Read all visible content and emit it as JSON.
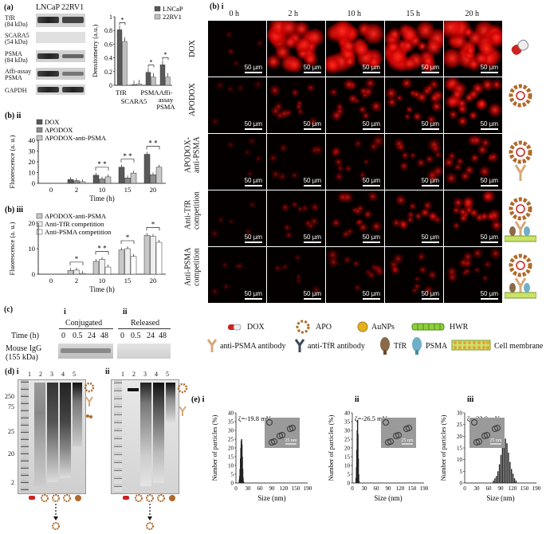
{
  "panel_a": {
    "label": "(a)",
    "cell_lines": [
      "LNCaP",
      "22RV1"
    ],
    "blots": [
      {
        "name": "TfR",
        "size": "(84 kDa)"
      },
      {
        "name": "SCARA5",
        "size": "(54 kDa)"
      },
      {
        "name": "PSMA",
        "size": "(84 kDa)"
      },
      {
        "name": "Affi-assay",
        "size": "PSMA"
      },
      {
        "name": "GAPDH",
        "size": ""
      }
    ],
    "chart_data": {
      "type": "bar",
      "ylabel": "Densitometry (a.u.)",
      "ylim": [
        0,
        1.0
      ],
      "yticks": [
        "0",
        "0.2",
        "0.4",
        "0.6",
        "0.8",
        "1"
      ],
      "categories": [
        "TfR",
        "SCARA5",
        "PSMA",
        "Affi-assay PSMA"
      ],
      "series": [
        {
          "name": "LNCaP",
          "color": "#595959",
          "values": [
            0.81,
            0.01,
            0.19,
            0.3
          ]
        },
        {
          "name": "22RV1",
          "color": "#bfbfbf",
          "values": [
            0.64,
            0.02,
            0.12,
            0.12
          ]
        }
      ],
      "significance": [
        "*",
        "",
        "*",
        "*"
      ]
    }
  },
  "panel_bii": {
    "label": "(b) ii",
    "chart_data": {
      "type": "bar",
      "ylabel": "Fluorescence (a. u.)",
      "xlabel": "Time (h)",
      "ylim": [
        0,
        40
      ],
      "yticks": [
        "0",
        "10",
        "20",
        "30",
        "40"
      ],
      "categories": [
        "0",
        "2",
        "10",
        "15",
        "20"
      ],
      "series": [
        {
          "name": "DOX",
          "color": "#595959",
          "values": [
            0,
            3.5,
            7.5,
            15,
            27
          ]
        },
        {
          "name": "APODOX",
          "color": "#8c8c8c",
          "values": [
            0,
            2.5,
            4,
            5,
            8
          ]
        },
        {
          "name": "APODOX-anti-PSMA",
          "color": "#c8c8c8",
          "values": [
            0,
            1.5,
            6,
            9.5,
            15
          ]
        }
      ],
      "significance": [
        "",
        "",
        "* *",
        "* *",
        "* *"
      ]
    }
  },
  "panel_biii": {
    "label": "(b) iii",
    "chart_data": {
      "type": "bar",
      "ylabel": "Fluorescence (a. u.)",
      "xlabel": "Time (h)",
      "ylim": [
        0,
        20
      ],
      "yticks": [
        "0",
        "10",
        "20"
      ],
      "categories": [
        "0",
        "2",
        "10",
        "15",
        "20"
      ],
      "series": [
        {
          "name": "APODOX-anti-PSMA",
          "color": "#c8c8c8",
          "values": [
            0,
            1.5,
            5,
            9.5,
            15.2
          ]
        },
        {
          "name": "Anti-TfR competition",
          "color": "#eeeeee",
          "values": [
            0,
            1.6,
            5.8,
            10.0,
            14.8
          ]
        },
        {
          "name": "Anti-PSMA competition",
          "color": "#ffffff",
          "values": [
            0,
            0.3,
            2.8,
            7.0,
            12.5
          ]
        }
      ],
      "significance": [
        "",
        "*",
        "* *",
        "*",
        "*"
      ]
    }
  },
  "panel_bi": {
    "label": "(b) i",
    "times": [
      "0 h",
      "2 h",
      "10 h",
      "15 h",
      "20 h"
    ],
    "rows": [
      "DOX",
      "APODOX",
      "APODOX-\nanti-PSMA",
      "Anti-TfR\ncompetition",
      "Anti-PSMA\ncompetition"
    ],
    "scale": "50 µm",
    "intensity": [
      [
        0.05,
        0.8,
        0.95,
        0.95,
        0.95
      ],
      [
        0.05,
        0.35,
        0.5,
        0.6,
        0.7
      ],
      [
        0.05,
        0.15,
        0.3,
        0.4,
        0.5
      ],
      [
        0.05,
        0.25,
        0.45,
        0.45,
        0.6
      ],
      [
        0.05,
        0.1,
        0.25,
        0.3,
        0.35
      ]
    ]
  },
  "panel_c": {
    "label": "(c)",
    "sub_i": "i",
    "sub_ii": "ii",
    "group_i": "Conjugated",
    "group_ii": "Released",
    "time_label": "Time (h)",
    "times": [
      "0",
      "0.5",
      "24",
      "48"
    ],
    "row_label": "Mouse IgG",
    "row_size": "(155 kDa)"
  },
  "legend": {
    "items": [
      "DOX",
      "APO",
      "AuNPs",
      "HWR",
      "anti-PSMA antibody",
      "anti-TfR antibody",
      "TfR",
      "PSMA",
      "Cell membrane"
    ]
  },
  "panel_d": {
    "label": "(d) i",
    "label_ii": "ii",
    "lanes": [
      "1",
      "2",
      "3",
      "4",
      "5"
    ],
    "markers": [
      "250",
      "75",
      "25",
      "20",
      "2"
    ]
  },
  "panel_e": {
    "label": "(e) i",
    "labels": [
      "(e) i",
      "ii",
      "iii"
    ],
    "ylabel": "Number of particles (%)",
    "xlabel": "Size (nm)",
    "inset_scale": "25 nm",
    "plots": [
      {
        "zeta": "ζ=-19.8 mV",
        "yticks": [
          "0",
          "5",
          "10",
          "15",
          "20",
          "25",
          "30",
          "35",
          "40"
        ],
        "ymax": 40,
        "xticks": [
          "0",
          "30",
          "60",
          "90",
          "120",
          "150",
          "190"
        ],
        "chart_data": {
          "type": "bar",
          "x": [
            9,
            10,
            11,
            12,
            13,
            14,
            15,
            16,
            17,
            18,
            19,
            20
          ],
          "values": [
            2,
            4,
            8,
            14,
            20,
            24,
            25,
            22,
            15,
            8,
            3,
            1
          ]
        }
      },
      {
        "zeta": "ζ=-26.5 mV",
        "yticks": [
          "0",
          "5",
          "10",
          "15",
          "20",
          "25",
          "30",
          "35",
          "40"
        ],
        "ymax": 40,
        "xticks": [
          "0",
          "30",
          "60",
          "90",
          "120",
          "150",
          "190"
        ],
        "chart_data": {
          "type": "bar",
          "x": [
            10,
            11,
            12,
            13,
            14,
            15,
            16,
            17,
            18
          ],
          "values": [
            3,
            9,
            19,
            30,
            36,
            28,
            14,
            5,
            1
          ]
        }
      },
      {
        "zeta": "ζ=-22.0 mV",
        "yticks": [
          "0",
          "5",
          "10",
          "15",
          "20",
          "25",
          "30"
        ],
        "ymax": 30,
        "xticks": [
          "0",
          "30",
          "60",
          "90",
          "120",
          "150",
          "190"
        ],
        "chart_data": {
          "type": "bar",
          "x": [
            76,
            80,
            84,
            88,
            92,
            96,
            100,
            104,
            108,
            112,
            116,
            120,
            124,
            128,
            132,
            136
          ],
          "values": [
            1,
            2,
            3,
            5,
            8,
            12,
            15,
            18,
            19,
            17,
            13,
            9,
            6,
            4,
            2,
            1
          ]
        }
      }
    ]
  }
}
